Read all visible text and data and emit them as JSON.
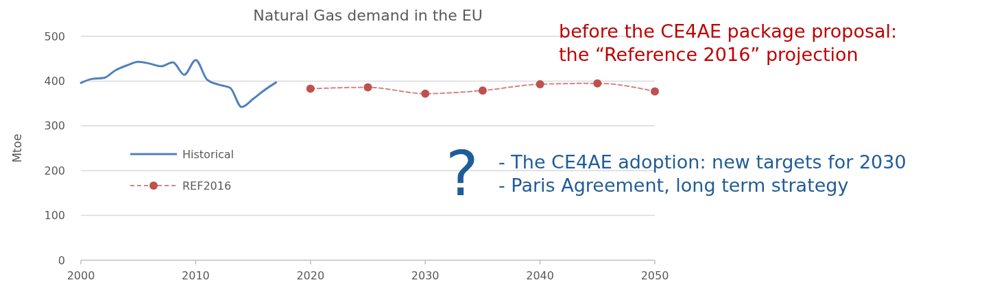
{
  "chart_data": {
    "type": "line",
    "title": "Natural Gas demand in the EU",
    "ylabel": "Mtoe",
    "xlim": [
      2000,
      2050
    ],
    "xticks": [
      2000,
      2010,
      2020,
      2030,
      2040,
      2050
    ],
    "ylim": [
      0,
      500
    ],
    "yticks": [
      0,
      100,
      200,
      300,
      400,
      500
    ],
    "grid": "y",
    "legend": "left",
    "series": [
      {
        "name": "Historical",
        "color": "#4f81bd",
        "marker": "none",
        "line_style": "solid",
        "x": [
          2000,
          2001,
          2002,
          2003,
          2004,
          2005,
          2006,
          2007,
          2008,
          2009,
          2010,
          2011,
          2012,
          2013,
          2014,
          2015,
          2016,
          2017
        ],
        "values": [
          396,
          405,
          407,
          424,
          435,
          443,
          439,
          433,
          442,
          414,
          447,
          403,
          392,
          385,
          342,
          360,
          380,
          397
        ]
      },
      {
        "name": "REF2016",
        "color": "#c0504d",
        "marker": "circle",
        "line_style": "dashed",
        "x": [
          2020,
          2025,
          2030,
          2035,
          2040,
          2045,
          2050
        ],
        "values": [
          383,
          386,
          372,
          379,
          393,
          395,
          377
        ]
      }
    ],
    "annotations": [
      "before the CE4AE package proposal:\nthe “Reference 2016” projection",
      "?",
      "- The CE4AE adoption: new targets for 2030\n- Paris Agreement, long term strategy"
    ]
  }
}
